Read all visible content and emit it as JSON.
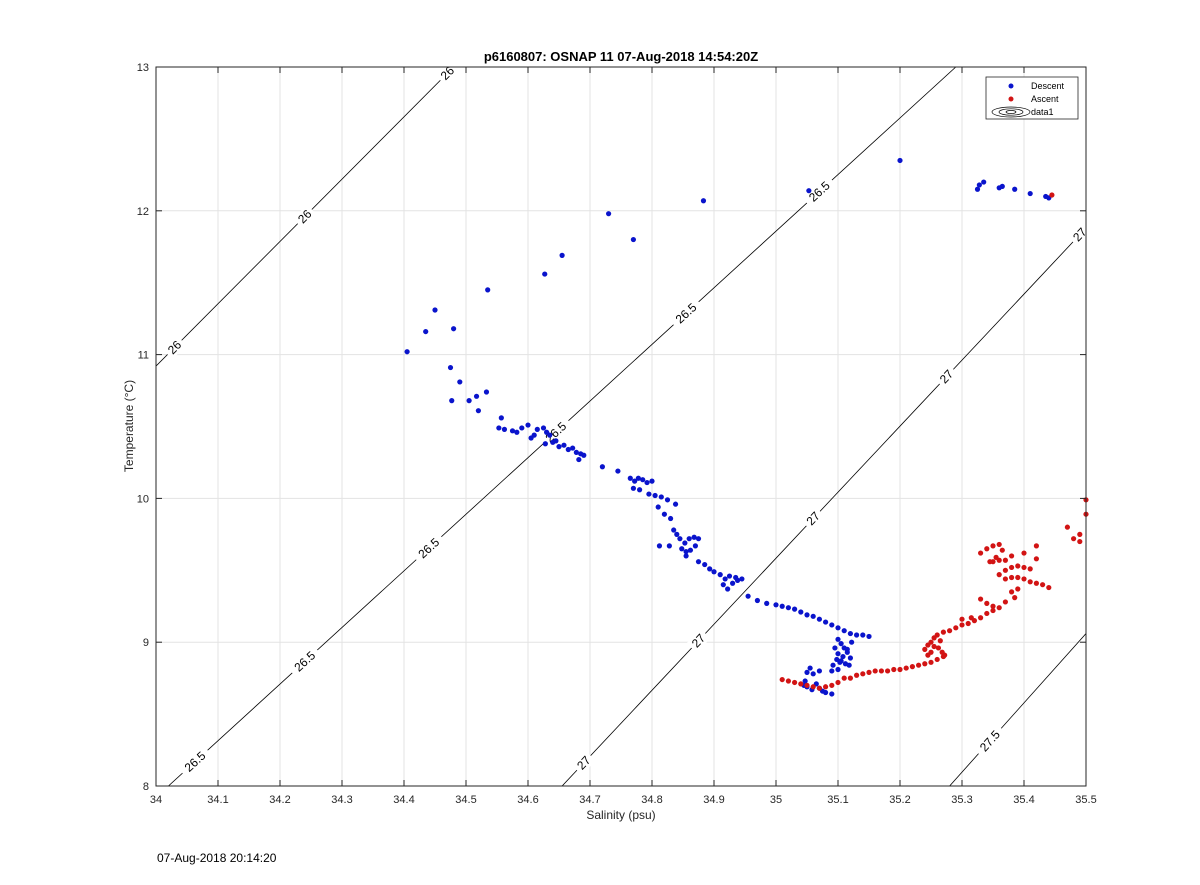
{
  "chart_data": {
    "type": "scatter",
    "title": "p6160807: OSNAP 11 07-Aug-2018 14:54:20Z",
    "xlabel": "Salinity (psu)",
    "ylabel": "Temperature (°C)",
    "xlim": [
      34,
      35.5
    ],
    "ylim": [
      8,
      13
    ],
    "xticks": [
      "34",
      "34.1",
      "34.2",
      "34.3",
      "34.4",
      "34.5",
      "34.6",
      "34.7",
      "34.8",
      "34.9",
      "35",
      "35.1",
      "35.2",
      "35.3",
      "35.4",
      "35.5"
    ],
    "yticks": [
      "8",
      "9",
      "10",
      "11",
      "12",
      "13"
    ],
    "grid": true,
    "legend_position": "top-right",
    "legend": [
      "Descent",
      "Ascent",
      "data1"
    ],
    "colors": {
      "Descent": "#0a14cc",
      "Ascent": "#d21414",
      "contour": "#000000",
      "grid": "#e3e3e3"
    },
    "contours": [
      {
        "level": "26",
        "labels": [
          "26",
          "26",
          "26"
        ]
      },
      {
        "level": "26.5",
        "labels": [
          "26.5",
          "26.5",
          "26.5",
          "26.5",
          "26.5",
          "26.5"
        ]
      },
      {
        "level": "27",
        "labels": [
          "27",
          "27",
          "27",
          "27",
          "27"
        ]
      },
      {
        "level": "27.5",
        "labels": [
          "27.5"
        ]
      }
    ],
    "series": [
      {
        "name": "Descent",
        "points": [
          [
            35.44,
            12.09
          ],
          [
            35.435,
            12.1
          ],
          [
            35.41,
            12.12
          ],
          [
            35.385,
            12.15
          ],
          [
            35.365,
            12.17
          ],
          [
            35.36,
            12.16
          ],
          [
            35.335,
            12.2
          ],
          [
            35.328,
            12.18
          ],
          [
            35.325,
            12.15
          ],
          [
            35.2,
            12.35
          ],
          [
            35.053,
            12.14
          ],
          [
            34.883,
            12.07
          ],
          [
            34.73,
            11.98
          ],
          [
            34.77,
            11.8
          ],
          [
            34.655,
            11.69
          ],
          [
            34.627,
            11.56
          ],
          [
            34.535,
            11.45
          ],
          [
            34.45,
            11.31
          ],
          [
            34.435,
            11.16
          ],
          [
            34.48,
            11.18
          ],
          [
            34.405,
            11.02
          ],
          [
            34.475,
            10.91
          ],
          [
            34.49,
            10.81
          ],
          [
            34.477,
            10.68
          ],
          [
            34.505,
            10.68
          ],
          [
            34.517,
            10.71
          ],
          [
            34.533,
            10.74
          ],
          [
            34.52,
            10.61
          ],
          [
            34.557,
            10.56
          ],
          [
            34.553,
            10.49
          ],
          [
            34.562,
            10.48
          ],
          [
            34.575,
            10.47
          ],
          [
            34.582,
            10.46
          ],
          [
            34.59,
            10.49
          ],
          [
            34.6,
            10.51
          ],
          [
            34.61,
            10.44
          ],
          [
            34.605,
            10.42
          ],
          [
            34.615,
            10.48
          ],
          [
            34.625,
            10.49
          ],
          [
            34.63,
            10.46
          ],
          [
            34.635,
            10.44
          ],
          [
            34.628,
            10.38
          ],
          [
            34.64,
            10.39
          ],
          [
            34.645,
            10.4
          ],
          [
            34.65,
            10.36
          ],
          [
            34.658,
            10.37
          ],
          [
            34.665,
            10.34
          ],
          [
            34.672,
            10.35
          ],
          [
            34.678,
            10.32
          ],
          [
            34.685,
            10.31
          ],
          [
            34.69,
            10.3
          ],
          [
            34.682,
            10.27
          ],
          [
            34.72,
            10.22
          ],
          [
            34.745,
            10.19
          ],
          [
            34.765,
            10.14
          ],
          [
            34.772,
            10.12
          ],
          [
            34.778,
            10.14
          ],
          [
            34.785,
            10.13
          ],
          [
            34.792,
            10.11
          ],
          [
            34.8,
            10.12
          ],
          [
            34.77,
            10.07
          ],
          [
            34.78,
            10.06
          ],
          [
            34.795,
            10.03
          ],
          [
            34.805,
            10.02
          ],
          [
            34.815,
            10.01
          ],
          [
            34.825,
            9.99
          ],
          [
            34.838,
            9.96
          ],
          [
            34.81,
            9.94
          ],
          [
            34.82,
            9.89
          ],
          [
            34.83,
            9.86
          ],
          [
            34.835,
            9.78
          ],
          [
            34.84,
            9.75
          ],
          [
            34.845,
            9.72
          ],
          [
            34.853,
            9.69
          ],
          [
            34.86,
            9.72
          ],
          [
            34.868,
            9.73
          ],
          [
            34.875,
            9.72
          ],
          [
            34.848,
            9.65
          ],
          [
            34.855,
            9.63
          ],
          [
            34.862,
            9.64
          ],
          [
            34.87,
            9.67
          ],
          [
            34.855,
            9.6
          ],
          [
            34.812,
            9.67
          ],
          [
            34.828,
            9.67
          ],
          [
            34.875,
            9.56
          ],
          [
            34.885,
            9.54
          ],
          [
            34.893,
            9.51
          ],
          [
            34.9,
            9.49
          ],
          [
            34.91,
            9.47
          ],
          [
            34.918,
            9.44
          ],
          [
            34.925,
            9.46
          ],
          [
            34.935,
            9.45
          ],
          [
            34.945,
            9.44
          ],
          [
            34.915,
            9.4
          ],
          [
            34.922,
            9.37
          ],
          [
            34.93,
            9.41
          ],
          [
            34.938,
            9.43
          ],
          [
            34.955,
            9.32
          ],
          [
            34.97,
            9.29
          ],
          [
            34.985,
            9.27
          ],
          [
            35.0,
            9.26
          ],
          [
            35.01,
            9.25
          ],
          [
            35.02,
            9.24
          ],
          [
            35.03,
            9.23
          ],
          [
            35.04,
            9.21
          ],
          [
            35.05,
            9.19
          ],
          [
            35.06,
            9.18
          ],
          [
            35.07,
            9.16
          ],
          [
            35.08,
            9.14
          ],
          [
            35.09,
            9.12
          ],
          [
            35.1,
            9.1
          ],
          [
            35.11,
            9.08
          ],
          [
            35.12,
            9.06
          ],
          [
            35.13,
            9.05
          ],
          [
            35.14,
            9.05
          ],
          [
            35.15,
            9.04
          ],
          [
            35.1,
            9.02
          ],
          [
            35.105,
            8.99
          ],
          [
            35.11,
            8.96
          ],
          [
            35.115,
            8.93
          ],
          [
            35.1,
            8.92
          ],
          [
            35.108,
            8.9
          ],
          [
            35.12,
            8.89
          ],
          [
            35.105,
            8.87
          ],
          [
            35.112,
            8.85
          ],
          [
            35.118,
            8.84
          ],
          [
            35.098,
            8.88
          ],
          [
            35.103,
            8.86
          ],
          [
            35.092,
            8.84
          ],
          [
            35.115,
            8.95
          ],
          [
            35.122,
            9.0
          ],
          [
            35.095,
            8.96
          ],
          [
            35.09,
            8.8
          ],
          [
            35.07,
            8.8
          ],
          [
            35.06,
            8.78
          ],
          [
            35.055,
            8.82
          ],
          [
            35.05,
            8.79
          ],
          [
            35.047,
            8.73
          ],
          [
            35.05,
            8.69
          ],
          [
            35.058,
            8.67
          ],
          [
            35.065,
            8.71
          ],
          [
            35.07,
            8.68
          ],
          [
            35.075,
            8.66
          ],
          [
            35.08,
            8.65
          ],
          [
            35.09,
            8.64
          ],
          [
            35.045,
            8.7
          ],
          [
            35.1,
            8.81
          ]
        ]
      },
      {
        "name": "Ascent",
        "points": [
          [
            35.01,
            8.74
          ],
          [
            35.02,
            8.73
          ],
          [
            35.03,
            8.72
          ],
          [
            35.04,
            8.71
          ],
          [
            35.05,
            8.7
          ],
          [
            35.06,
            8.69
          ],
          [
            35.07,
            8.68
          ],
          [
            35.08,
            8.69
          ],
          [
            35.09,
            8.7
          ],
          [
            35.1,
            8.72
          ],
          [
            35.11,
            8.75
          ],
          [
            35.12,
            8.75
          ],
          [
            35.13,
            8.77
          ],
          [
            35.14,
            8.78
          ],
          [
            35.15,
            8.79
          ],
          [
            35.16,
            8.8
          ],
          [
            35.17,
            8.8
          ],
          [
            35.18,
            8.8
          ],
          [
            35.19,
            8.81
          ],
          [
            35.2,
            8.81
          ],
          [
            35.21,
            8.82
          ],
          [
            35.22,
            8.83
          ],
          [
            35.23,
            8.84
          ],
          [
            35.24,
            8.85
          ],
          [
            35.25,
            8.86
          ],
          [
            35.26,
            8.88
          ],
          [
            35.27,
            8.9
          ],
          [
            35.25,
            8.93
          ],
          [
            35.24,
            8.95
          ],
          [
            35.245,
            8.98
          ],
          [
            35.25,
            9.0
          ],
          [
            35.255,
            9.03
          ],
          [
            35.26,
            9.05
          ],
          [
            35.262,
            8.96
          ],
          [
            35.268,
            8.93
          ],
          [
            35.272,
            8.91
          ],
          [
            35.255,
            8.97
          ],
          [
            35.245,
            8.91
          ],
          [
            35.265,
            9.01
          ],
          [
            35.27,
            9.07
          ],
          [
            35.28,
            9.08
          ],
          [
            35.29,
            9.1
          ],
          [
            35.3,
            9.12
          ],
          [
            35.31,
            9.13
          ],
          [
            35.32,
            9.15
          ],
          [
            35.33,
            9.17
          ],
          [
            35.3,
            9.16
          ],
          [
            35.315,
            9.17
          ],
          [
            35.34,
            9.2
          ],
          [
            35.35,
            9.22
          ],
          [
            35.36,
            9.24
          ],
          [
            35.33,
            9.3
          ],
          [
            35.34,
            9.27
          ],
          [
            35.35,
            9.25
          ],
          [
            35.37,
            9.28
          ],
          [
            35.385,
            9.31
          ],
          [
            35.38,
            9.35
          ],
          [
            35.39,
            9.37
          ],
          [
            35.36,
            9.47
          ],
          [
            35.37,
            9.44
          ],
          [
            35.38,
            9.45
          ],
          [
            35.39,
            9.45
          ],
          [
            35.4,
            9.44
          ],
          [
            35.41,
            9.42
          ],
          [
            35.42,
            9.41
          ],
          [
            35.43,
            9.4
          ],
          [
            35.44,
            9.38
          ],
          [
            35.37,
            9.5
          ],
          [
            35.38,
            9.52
          ],
          [
            35.39,
            9.53
          ],
          [
            35.4,
            9.52
          ],
          [
            35.41,
            9.51
          ],
          [
            35.35,
            9.56
          ],
          [
            35.36,
            9.57
          ],
          [
            35.37,
            9.57
          ],
          [
            35.38,
            9.6
          ],
          [
            35.33,
            9.62
          ],
          [
            35.34,
            9.65
          ],
          [
            35.35,
            9.67
          ],
          [
            35.36,
            9.68
          ],
          [
            35.365,
            9.64
          ],
          [
            35.355,
            9.59
          ],
          [
            35.345,
            9.56
          ],
          [
            35.4,
            9.62
          ],
          [
            35.42,
            9.67
          ],
          [
            35.42,
            9.58
          ],
          [
            35.47,
            9.8
          ],
          [
            35.48,
            9.72
          ],
          [
            35.49,
            9.7
          ],
          [
            35.49,
            9.75
          ],
          [
            35.5,
            9.89
          ],
          [
            35.5,
            9.99
          ],
          [
            35.445,
            12.11
          ]
        ]
      }
    ]
  },
  "footer": {
    "timestamp": "07-Aug-2018 20:14:20"
  }
}
